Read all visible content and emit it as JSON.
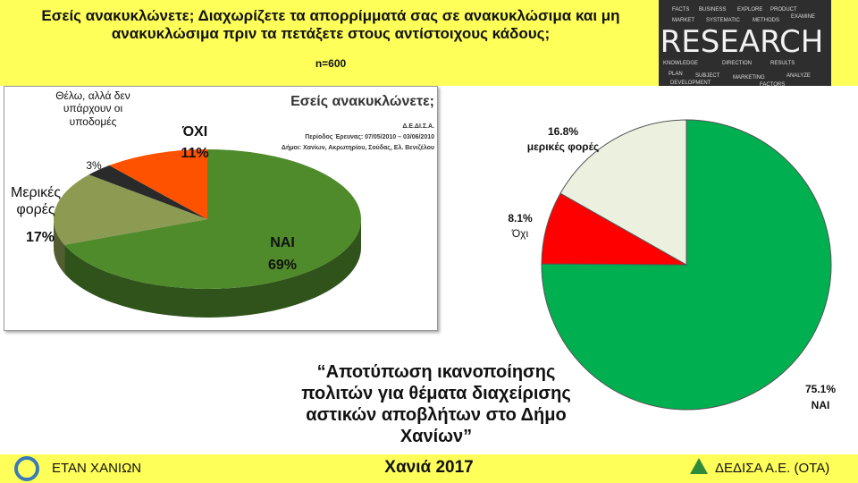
{
  "header": {
    "title": "Εσείς ανακυκλώνετε; Διαχωρίζετε τα απορρίμματά σας σε ανακυκλώσιμα και μη ανακυκλώσιμα πριν τα πετάξετε στους αντίστοιχους κάδους;",
    "sample": "n=600"
  },
  "banner": {
    "word": "RESEARCH",
    "keywords": [
      "FACTS",
      "BUSINESS",
      "EXPLORE",
      "PRODUCT",
      "MARKET",
      "SYSTEMATIC",
      "METHODS",
      "EXAMINE",
      "KNOWLEDGE",
      "DIRECTION",
      "RESULTS",
      "PLAN",
      "SUBJECT",
      "MARKETING",
      "ANALYZE",
      "DEVELOPMENT",
      "FACTORS"
    ]
  },
  "chart_data": [
    {
      "type": "pie",
      "three_d": true,
      "title": "Εσείς ανακυκλώνετε;",
      "source": [
        "Δ.Ε.ΔΙ.Σ.Α.",
        "Περίοδος Έρευνας: 07/05/2010 – 03/06/2010",
        "Δήμοι: Χανίων, Ακρωτηρίου, Σούδας, Ελ. Βενιζέλου"
      ],
      "categories": [
        "ΝΑΙ",
        "Μερικές φορές",
        "Θέλω, αλλά δεν υπάρχουν οι υποδομές",
        "ΌΧΙ"
      ],
      "values": [
        69,
        17,
        3,
        11
      ],
      "value_labels": [
        "69%",
        "17%",
        "3%",
        "11%"
      ],
      "colors": [
        "#4f8a2b",
        "#8c9a52",
        "#2a2a2a",
        "#ff5200"
      ]
    },
    {
      "type": "pie",
      "three_d": false,
      "categories": [
        "ΝΑΙ",
        "Όχι",
        "μερικές φορές"
      ],
      "values": [
        75.1,
        8.1,
        16.8
      ],
      "value_labels": [
        "75.1%",
        "8.1%",
        "16.8%"
      ],
      "colors": [
        "#00b050",
        "#ff0000",
        "#ebf1de"
      ]
    }
  ],
  "caption": "“Αποτύπωση ικανοποίησης πολιτών για θέματα διαχείρισης αστικών αποβλήτων στο Δήμο Χανίων”",
  "footer": {
    "left": "ΕΤΑΝ ΧΑΝΙΩΝ",
    "center": "Χανιά 2017",
    "right": "ΔΕΔΙΣΑ Α.Ε. (ΟΤΑ)"
  }
}
